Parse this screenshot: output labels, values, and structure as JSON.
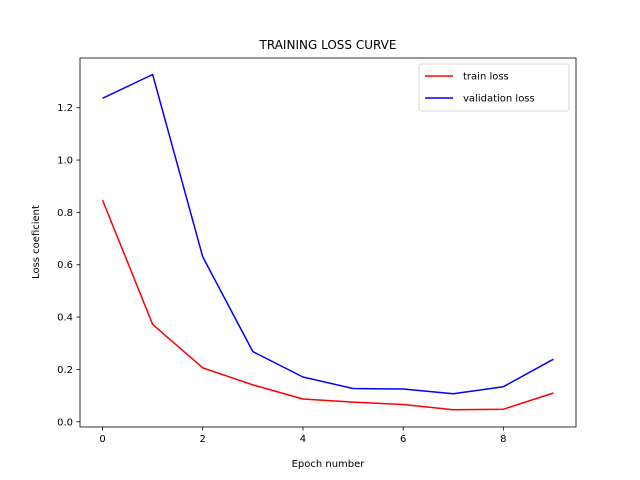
{
  "chart_data": {
    "type": "line",
    "title": "TRAINING LOSS CURVE",
    "xlabel": "Epoch number",
    "ylabel": "Loss coeficient",
    "x": [
      0,
      1,
      2,
      3,
      4,
      5,
      6,
      7,
      8,
      9
    ],
    "xlim": [
      -0.45,
      9.45
    ],
    "ylim": [
      -0.02,
      1.39
    ],
    "xticks": [
      0,
      2,
      4,
      6,
      8
    ],
    "yticks": [
      0.0,
      0.2,
      0.4,
      0.6,
      0.8,
      1.0,
      1.2
    ],
    "xtick_labels": [
      "0",
      "2",
      "4",
      "6",
      "8"
    ],
    "ytick_labels": [
      "0.0",
      "0.2",
      "0.4",
      "0.6",
      "0.8",
      "1.0",
      "1.2"
    ],
    "grid": false,
    "legend_position": "top-right",
    "series": [
      {
        "name": "train loss",
        "color": "#ff0000",
        "values": [
          0.847,
          0.372,
          0.206,
          0.141,
          0.087,
          0.075,
          0.066,
          0.046,
          0.048,
          0.11
        ]
      },
      {
        "name": "validation loss",
        "color": "#0000ff",
        "values": [
          1.236,
          1.327,
          0.63,
          0.268,
          0.171,
          0.127,
          0.125,
          0.107,
          0.134,
          0.239
        ]
      }
    ]
  }
}
